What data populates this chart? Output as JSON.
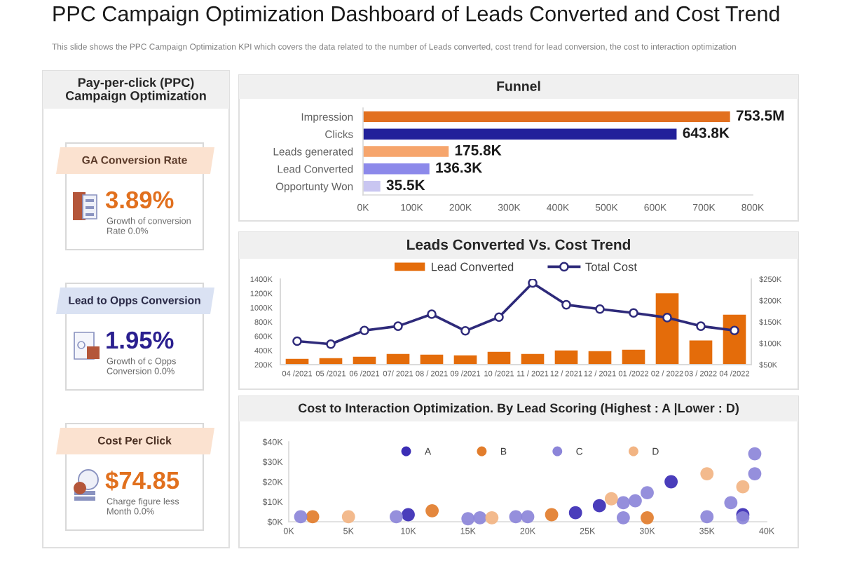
{
  "chart_data": [
    {
      "type": "other",
      "title": "PPC Campaign Optimization Dashboard of Leads Converted and Cost Trend",
      "subtitle": "This slide shows the PPC Campaign Optimization KPI which covers the data related to the number of Leads converted, cost trend for lead conversion, the cost to interaction optimization"
    },
    {
      "type": "other",
      "title": "Pay-per-click (PPC)\nCampaign Optimization",
      "annotations": [
        "GA Conversion Rate",
        "3.89%",
        "Growth of conversion\nRate 0.0%",
        "Lead to Opps Conversion",
        "1.95%",
        "Growth of c Opps\nConversion 0.0%",
        "Cost Per Click",
        "$74.85",
        "Charge figure less\nMonth 0.0%"
      ],
      "colors": [
        "#e1701e",
        "#2a1f8f",
        "#e1701e"
      ]
    },
    {
      "type": "bar",
      "title": "Funnel",
      "orientation": "horizontal",
      "categories": [
        "Impression",
        "Clicks",
        "Leads generated",
        "Lead Converted",
        "Opportunty Won"
      ],
      "values": [
        753.5,
        643.8,
        175.8,
        136.3,
        35.5
      ],
      "colors": [
        "#e2701f",
        "#22209a",
        "#f6a56c",
        "#8c89ea",
        "#c9c6f1"
      ],
      "value_labels": [
        "753.5M",
        "643.8K",
        "175.8K",
        "136.3K",
        "35.5K"
      ],
      "xlim": [
        0,
        800
      ],
      "xticks": [
        {
          "value": 0,
          "label": "0K"
        },
        {
          "value": 100,
          "label": "100K"
        },
        {
          "value": 200,
          "label": "200K"
        },
        {
          "value": 300,
          "label": "300K"
        },
        {
          "value": 400,
          "label": "400K"
        },
        {
          "value": 500,
          "label": "500K"
        },
        {
          "value": 600,
          "label": "600K"
        },
        {
          "value": 700,
          "label": "700K"
        },
        {
          "value": 800,
          "label": "800K"
        }
      ]
    },
    {
      "type": "bar",
      "title": "Leads Converted Vs. Cost Trend",
      "categories": [
        "04 /2021",
        "05 /2021",
        "06 /2021",
        "07/ 2021",
        "08 / 2021",
        "09 /2021",
        "10 /2021",
        "11 / 2021",
        "12 / 2021",
        "12 / 2021",
        "01 /2022",
        "02 / 2022",
        "03 / 2022",
        "04 /2022"
      ],
      "series": [
        {
          "name": "Lead Converted",
          "type": "bar",
          "color": "#e46c0a",
          "values": [
            280,
            290,
            310,
            350,
            340,
            330,
            380,
            350,
            400,
            390,
            410,
            1200,
            540,
            900
          ]
        },
        {
          "name": "Total Cost",
          "type": "line",
          "axis": "y2",
          "color": "#2e2a7a",
          "marker": "circle",
          "values": [
            105,
            98,
            130,
            140,
            168,
            129,
            161,
            241,
            190,
            180,
            171,
            160,
            140,
            130
          ]
        }
      ],
      "ylim": [
        200,
        1400
      ],
      "yticks": [
        {
          "value": 200,
          "label": "200K"
        },
        {
          "value": 400,
          "label": "400K"
        },
        {
          "value": 600,
          "label": "600K"
        },
        {
          "value": 800,
          "label": "800K"
        },
        {
          "value": 1000,
          "label": "1000K"
        },
        {
          "value": 1200,
          "label": "1200K"
        },
        {
          "value": 1400,
          "label": "1400K"
        }
      ],
      "y2lim": [
        50,
        250
      ],
      "y2ticks": [
        {
          "value": 50,
          "label": "$50K"
        },
        {
          "value": 100,
          "label": "$100K"
        },
        {
          "value": 150,
          "label": "$150K"
        },
        {
          "value": 200,
          "label": "$200K"
        },
        {
          "value": 250,
          "label": "$250K"
        }
      ],
      "legend": "top"
    },
    {
      "type": "scatter",
      "title": "Cost to Interaction Optimization. By Lead Scoring (Highest : A |Lower : D)",
      "marker": "circle",
      "series": [
        {
          "name": "A",
          "color": "#3b2db5",
          "x": [
            10,
            24,
            26,
            32,
            38
          ],
          "values": [
            3.5,
            4.5,
            8,
            20,
            3.5
          ]
        },
        {
          "name": "B",
          "color": "#e27d2c",
          "x": [
            2,
            12,
            22,
            30
          ],
          "values": [
            2.5,
            5.5,
            3.5,
            2
          ]
        },
        {
          "name": "C",
          "color": "#8c85d9",
          "x": [
            1,
            9,
            15,
            16,
            19,
            20,
            28,
            28,
            29,
            30,
            35,
            37,
            38,
            39,
            39
          ],
          "values": [
            2.5,
            2.5,
            1.5,
            2,
            2.5,
            2.5,
            9.5,
            2,
            10.5,
            14.5,
            2.5,
            9.5,
            2,
            24,
            34
          ]
        },
        {
          "name": "D",
          "color": "#f2b483",
          "x": [
            5,
            17,
            27,
            35,
            38
          ],
          "values": [
            2.5,
            2,
            11.5,
            24,
            17.5
          ]
        }
      ],
      "xlim": [
        0,
        40
      ],
      "xticks": [
        {
          "value": 0,
          "label": "0K"
        },
        {
          "value": 5,
          "label": "5K"
        },
        {
          "value": 10,
          "label": "10K"
        },
        {
          "value": 15,
          "label": "15K"
        },
        {
          "value": 20,
          "label": "20K"
        },
        {
          "value": 25,
          "label": "25K"
        },
        {
          "value": 30,
          "label": "30K"
        },
        {
          "value": 35,
          "label": "35K"
        },
        {
          "value": 40,
          "label": "40K"
        }
      ],
      "ylim": [
        0,
        40
      ],
      "yticks": [
        {
          "value": 0,
          "label": "$0K"
        },
        {
          "value": 10,
          "label": "$10K"
        },
        {
          "value": 20,
          "label": "$20K"
        },
        {
          "value": 30,
          "label": "$30K"
        },
        {
          "value": 40,
          "label": "$40K"
        }
      ],
      "legend": "top"
    }
  ]
}
